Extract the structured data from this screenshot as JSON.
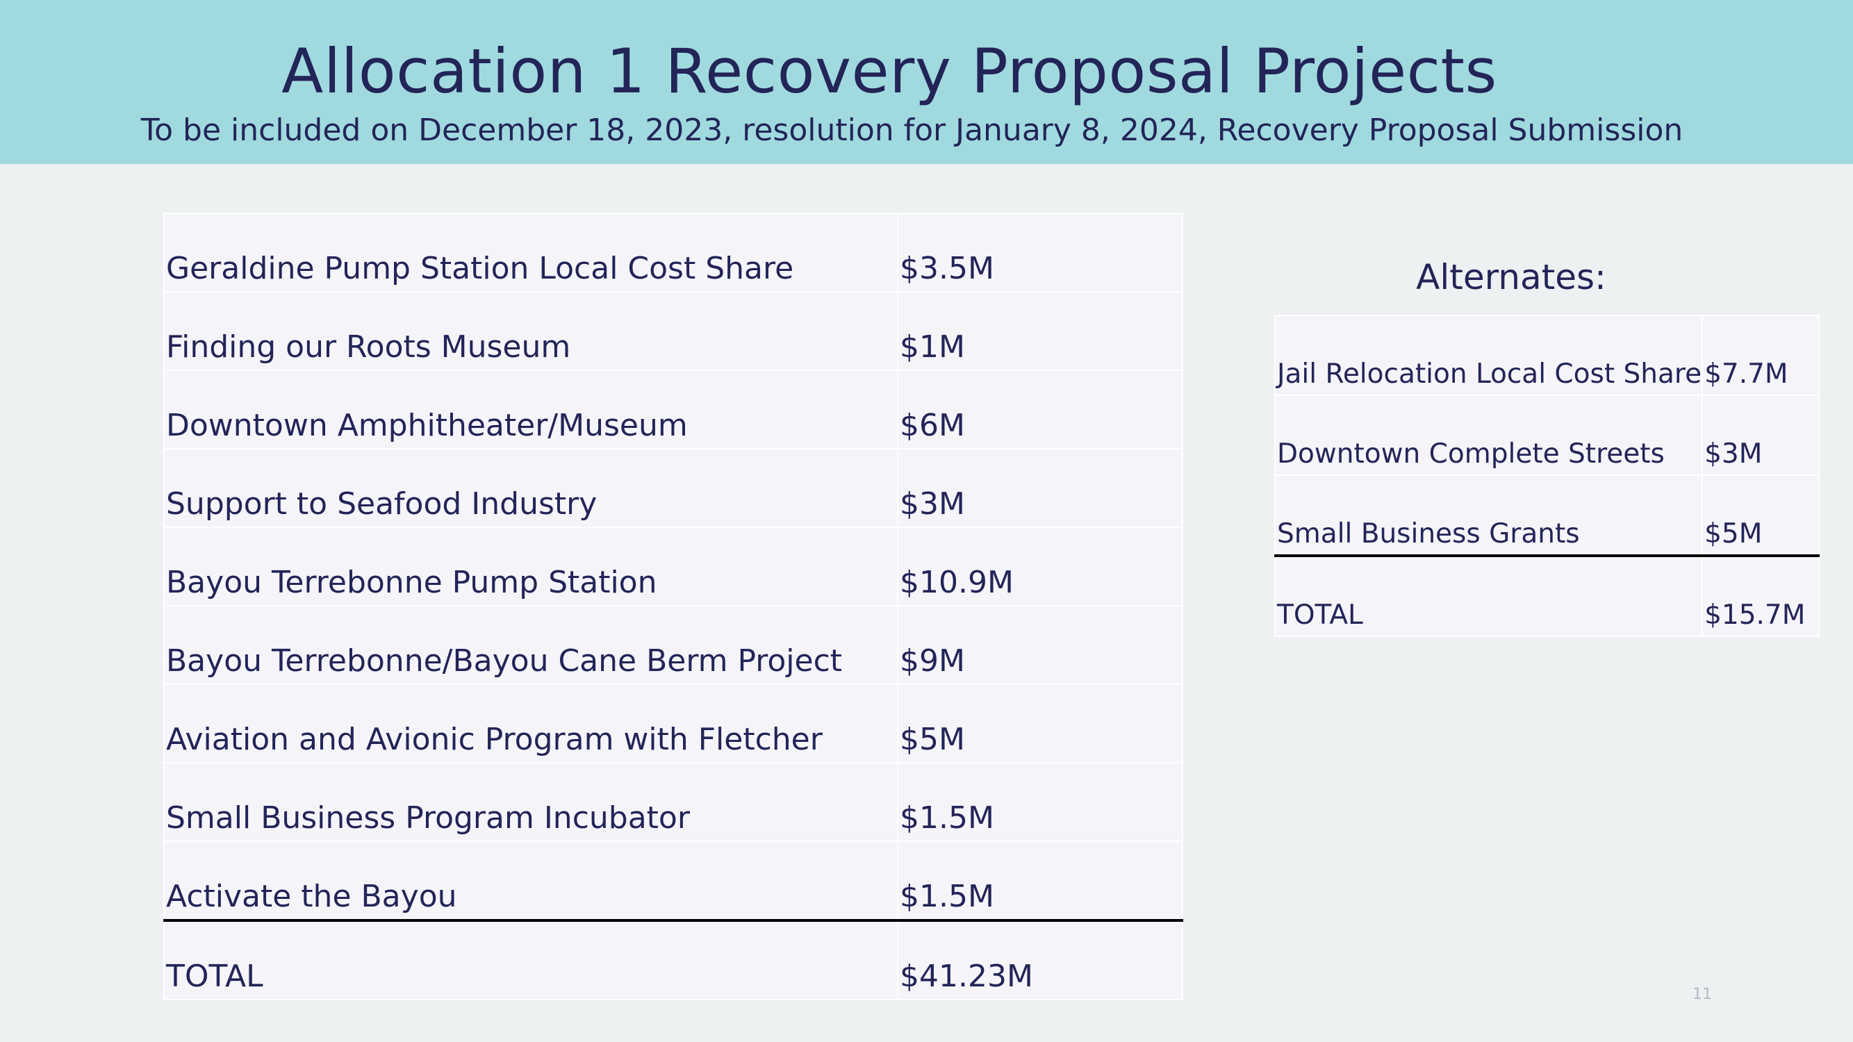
{
  "title": "Allocation 1 Recovery Proposal Projects",
  "subtitle": "To be included on December 18, 2023, resolution for January 8, 2024, Recovery Proposal Submission",
  "projects": [
    {
      "name": "Geraldine Pump Station Local Cost Share",
      "amount": "$3.5M"
    },
    {
      "name": "Finding our Roots Museum",
      "amount": "$1M"
    },
    {
      "name": "Downtown Amphitheater/Museum",
      "amount": "$6M"
    },
    {
      "name": "Support to Seafood Industry",
      "amount": "$3M"
    },
    {
      "name": "Bayou Terrebonne Pump Station",
      "amount": "$10.9M"
    },
    {
      "name": "Bayou Terrebonne/Bayou Cane Berm Project",
      "amount": "$9M"
    },
    {
      "name": "Aviation and Avionic Program with Fletcher",
      "amount": "$5M"
    },
    {
      "name": "Small Business Program Incubator",
      "amount": "$1.5M"
    },
    {
      "name": "Activate the Bayou",
      "amount": "$1.5M"
    }
  ],
  "projects_total": {
    "label": "TOTAL",
    "amount": "$41.23M"
  },
  "alternates_heading": "Alternates:",
  "alternates": [
    {
      "name": "Jail Relocation Local Cost Share",
      "amount": "$7.7M"
    },
    {
      "name": "Downtown Complete Streets",
      "amount": "$3M"
    },
    {
      "name": "Small Business Grants",
      "amount": "$5M"
    }
  ],
  "alternates_total": {
    "label": "TOTAL",
    "amount": "$15.7M"
  },
  "page_number": "11",
  "colors": {
    "header_band": "#a0dadf",
    "background": "#eef1f1",
    "table_fill": "#f5f4f9",
    "text": "#232458"
  }
}
